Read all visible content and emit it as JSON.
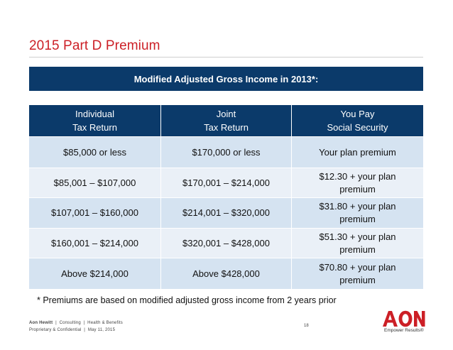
{
  "slide": {
    "title": "2015 Part D Premium",
    "banner": "Modified Adjusted Gross Income in 2013*:",
    "footnote": "* Premiums are based on modified adjusted gross income from 2 years prior",
    "page_number": "18"
  },
  "table": {
    "headers": [
      {
        "line1": "Individual",
        "line2": "Tax Return"
      },
      {
        "line1": "Joint",
        "line2": "Tax Return"
      },
      {
        "line1": "You Pay",
        "line2": "Social Security"
      }
    ],
    "rows": [
      {
        "individual": "$85,000 or less",
        "joint": "$170,000 or less",
        "premium_line1": "Your plan premium",
        "premium_line2": ""
      },
      {
        "individual": "$85,001 – $107,000",
        "joint": "$170,001 – $214,000",
        "premium_line1": "$12.30 + your plan",
        "premium_line2": "premium"
      },
      {
        "individual": "$107,001 – $160,000",
        "joint": "$214,001 – $320,000",
        "premium_line1": "$31.80 + your plan",
        "premium_line2": "premium"
      },
      {
        "individual": "$160,001 – $214,000",
        "joint": "$320,001 – $428,000",
        "premium_line1": "$51.30 + your plan",
        "premium_line2": "premium"
      },
      {
        "individual": "Above $214,000",
        "joint": "Above $428,000",
        "premium_line1": "$70.80 + your plan",
        "premium_line2": "premium"
      }
    ]
  },
  "footer": {
    "company": "Aon Hewitt",
    "division": "Consulting",
    "practice": "Health & Benefits",
    "classification": "Proprietary & Confidential",
    "date": "May 11, 2015"
  },
  "branding": {
    "logo_text": "AON",
    "tagline": "Empower Results®",
    "logo_color": "#cc1f26"
  },
  "colors": {
    "title": "#cc1f26",
    "banner_bg": "#0b3a6a",
    "row_dark": "#d5e3f1",
    "row_light": "#eaf0f7"
  }
}
